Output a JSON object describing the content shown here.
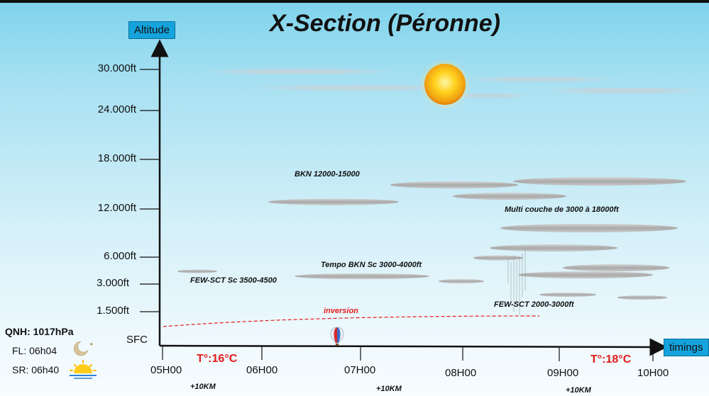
{
  "title": "X-Section (Péronne)",
  "axes": {
    "y_label": "Altitude",
    "x_label": "timings"
  },
  "altitude_ticks": [
    "30.000ft",
    "24.000ft",
    "18.000ft",
    "12.000ft",
    "6.000ft",
    "3.000ft",
    "1.500ft",
    "SFC"
  ],
  "time_ticks": [
    "05H00",
    "06H00",
    "07H00",
    "08H00",
    "09H00",
    "10H00"
  ],
  "distance_labels": [
    "+10KM",
    "+10KM",
    "+10KM"
  ],
  "temperatures": [
    "T°:16°C",
    "T°:18°C"
  ],
  "cloud_labels": {
    "bkn": "BKN 12000-15000",
    "multi": "Multi couche de 3000 à 18000ft",
    "tempo": "Tempo BKN Sc 3000-4000ft",
    "few_sct_left": "FEW-SCT Sc 3500-4500",
    "few_sct_right": "FEW-SCT 2000-3000ft",
    "inversion": "inversion"
  },
  "info": {
    "qnh": "QNH: 1017hPa",
    "fl": "FL: 06h04",
    "sr": "SR: 06h40"
  },
  "colors": {
    "axis_box": "#15a3dd",
    "temperature": "#e31b1b",
    "inversion_line": "#e31b1b"
  },
  "icons": [
    "sun-icon",
    "balloon-icon",
    "moon-icon",
    "sunrise-icon"
  ]
}
